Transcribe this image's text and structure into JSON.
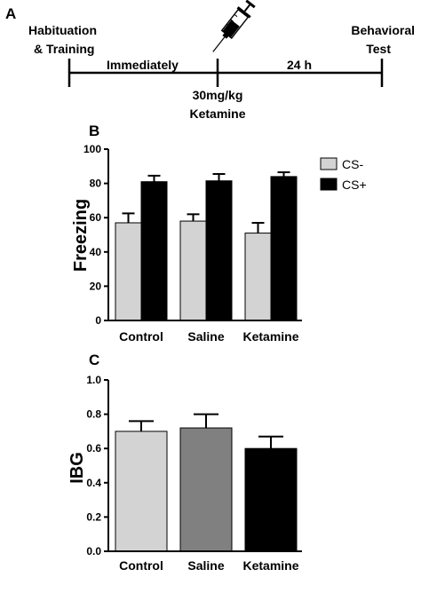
{
  "panel_a": {
    "letter": "A",
    "start_line1": "Habituation",
    "start_line2": "& Training",
    "interval_1": "Immediately",
    "interval_2": "24 h",
    "injection_line1": "30mg/kg",
    "injection_line2": "Ketamine",
    "end_line1": "Behavioral",
    "end_line2": "Test",
    "icon": "syringe-icon"
  },
  "chart_data": [
    {
      "panel": "B",
      "type": "bar",
      "ylabel": "Freezing",
      "xlabel": "",
      "ylim": [
        0,
        100
      ],
      "yticks": [
        "0",
        "20",
        "40",
        "60",
        "80",
        "100"
      ],
      "categories": [
        "Control",
        "Saline",
        "Ketamine"
      ],
      "series": [
        {
          "name": "CS-",
          "color": "#d3d3d3",
          "values": [
            57,
            58,
            51
          ],
          "errors": [
            5.5,
            4,
            6
          ]
        },
        {
          "name": "CS+",
          "color": "#000000",
          "values": [
            81,
            81.5,
            84
          ],
          "errors": [
            3.5,
            4,
            2.5
          ]
        }
      ],
      "legend": "top-right"
    },
    {
      "panel": "C",
      "type": "bar",
      "ylabel": "IBG",
      "xlabel": "",
      "ylim": [
        0,
        1.0
      ],
      "yticks": [
        "0.0",
        "0.2",
        "0.4",
        "0.6",
        "0.8",
        "1.0"
      ],
      "categories": [
        "Control",
        "Saline",
        "Ketamine"
      ],
      "values": [
        0.7,
        0.72,
        0.6
      ],
      "errors": [
        0.06,
        0.08,
        0.07
      ],
      "colors": [
        "#d3d3d3",
        "#808080",
        "#000000"
      ]
    }
  ]
}
